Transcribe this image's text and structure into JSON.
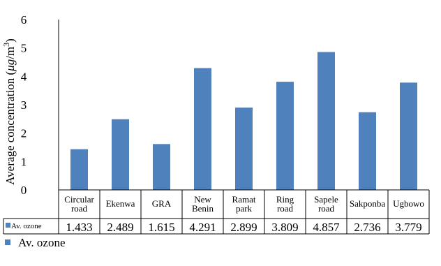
{
  "chart_data": {
    "type": "bar",
    "categories": [
      [
        "Circular",
        "road"
      ],
      [
        "Ekenwa"
      ],
      [
        "GRA"
      ],
      [
        "New",
        "Benin"
      ],
      [
        "Ramat",
        "park"
      ],
      [
        "Ring",
        "road"
      ],
      [
        "Sapele",
        "road"
      ],
      [
        "Sakponba"
      ],
      [
        "Ugbowo"
      ]
    ],
    "series": [
      {
        "name": "Av. ozone",
        "values": [
          1.433,
          2.489,
          1.615,
          4.291,
          2.899,
          3.809,
          4.857,
          2.736,
          3.779
        ],
        "value_labels": [
          "1.433",
          "2.489",
          "1.615",
          "4.291",
          "2.899",
          "3.809",
          "4.857",
          "2.736",
          "3.779"
        ],
        "color": "#4F81BD"
      }
    ],
    "ylabel": "Average concentration (μg/m³)",
    "ylim": [
      0,
      6
    ],
    "yticks": [
      "0",
      "1",
      "2",
      "3",
      "4",
      "5",
      "6"
    ],
    "grid": false,
    "legend": "bottom-left",
    "data_table": true
  }
}
